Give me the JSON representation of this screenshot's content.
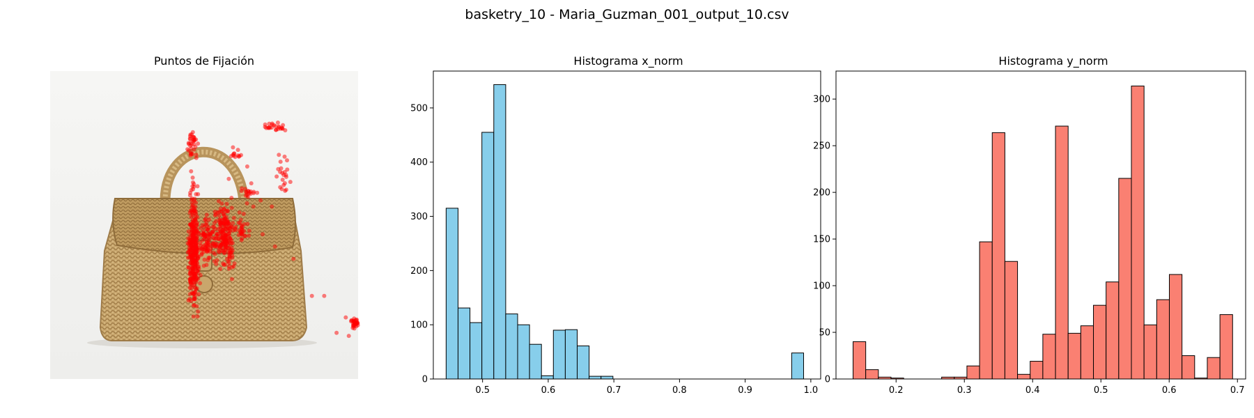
{
  "figure_title": "basketry_10 - Maria_Guzman_001_output_10.csv",
  "colors": {
    "fixation": "#ff0000",
    "hist_x": "#87ceeb",
    "hist_y": "#fa8072",
    "edge": "#000000"
  },
  "chart_data": [
    {
      "type": "scatter",
      "title": "Puntos de Fijación",
      "background": "photo of a woven basketry handbag",
      "axes": "off",
      "xlim": [
        0,
        1
      ],
      "ylim": [
        0,
        1
      ],
      "point_color": "#ff0000",
      "clusters": [
        {
          "cx": 0.465,
          "cy": 0.42,
          "sx": 0.012,
          "sy": 0.12,
          "n": 320
        },
        {
          "cx": 0.565,
          "cy": 0.47,
          "sx": 0.024,
          "sy": 0.065,
          "n": 200
        },
        {
          "cx": 0.51,
          "cy": 0.45,
          "sx": 0.018,
          "sy": 0.05,
          "n": 90
        },
        {
          "cx": 0.62,
          "cy": 0.48,
          "sx": 0.02,
          "sy": 0.03,
          "n": 30
        },
        {
          "cx": 0.65,
          "cy": 0.6,
          "sx": 0.015,
          "sy": 0.02,
          "n": 20
        },
        {
          "cx": 0.46,
          "cy": 0.76,
          "sx": 0.014,
          "sy": 0.04,
          "n": 35
        },
        {
          "cx": 0.73,
          "cy": 0.82,
          "sx": 0.02,
          "sy": 0.012,
          "n": 25
        },
        {
          "cx": 0.755,
          "cy": 0.67,
          "sx": 0.018,
          "sy": 0.06,
          "n": 20
        },
        {
          "cx": 0.6,
          "cy": 0.73,
          "sx": 0.015,
          "sy": 0.015,
          "n": 12
        },
        {
          "cx": 0.99,
          "cy": 0.18,
          "sx": 0.008,
          "sy": 0.012,
          "n": 30
        }
      ],
      "scatter_points": [
        [
          0.77,
          0.68
        ],
        [
          0.78,
          0.64
        ],
        [
          0.72,
          0.56
        ],
        [
          0.66,
          0.56
        ],
        [
          0.73,
          0.43
        ],
        [
          0.79,
          0.39
        ],
        [
          0.85,
          0.27
        ],
        [
          0.89,
          0.27
        ],
        [
          0.96,
          0.2
        ],
        [
          0.93,
          0.15
        ],
        [
          0.97,
          0.14
        ],
        [
          0.58,
          0.65
        ],
        [
          0.48,
          0.6
        ],
        [
          0.69,
          0.47
        ],
        [
          0.64,
          0.69
        ]
      ]
    },
    {
      "type": "bar",
      "title": "Histograma x_norm",
      "xlim": [
        0.425,
        1.015
      ],
      "ylim": [
        0,
        568
      ],
      "xticks": [
        0.5,
        0.6,
        0.7,
        0.8,
        0.9,
        1.0
      ],
      "xtick_labels": [
        "0.5",
        "0.6",
        "0.7",
        "0.8",
        "0.9",
        "1.0"
      ],
      "yticks": [
        0,
        100,
        200,
        300,
        400,
        500
      ],
      "bin_start": 0.4445,
      "bin_width": 0.01815,
      "values": [
        315,
        131,
        104,
        455,
        543,
        120,
        100,
        64,
        6,
        90,
        91,
        61,
        5,
        5,
        0,
        0,
        0,
        0,
        0,
        0,
        0,
        0,
        0,
        0,
        0,
        0,
        0,
        0,
        0,
        48
      ],
      "fill": "#87ceeb"
    },
    {
      "type": "bar",
      "title": "Histograma y_norm",
      "xlim": [
        0.112,
        0.712
      ],
      "ylim": [
        0,
        330
      ],
      "xticks": [
        0.2,
        0.3,
        0.4,
        0.5,
        0.6,
        0.7
      ],
      "xtick_labels": [
        "0.2",
        "0.3",
        "0.4",
        "0.5",
        "0.6",
        "0.7"
      ],
      "yticks": [
        0,
        50,
        100,
        150,
        200,
        250,
        300
      ],
      "bin_start": 0.137,
      "bin_width": 0.01853,
      "values": [
        40,
        10,
        2,
        1,
        0,
        0,
        0,
        2,
        2,
        14,
        147,
        264,
        126,
        5,
        19,
        48,
        271,
        49,
        57,
        79,
        104,
        215,
        314,
        58,
        85,
        112,
        25,
        1,
        23,
        69
      ],
      "fill": "#fa8072"
    }
  ]
}
